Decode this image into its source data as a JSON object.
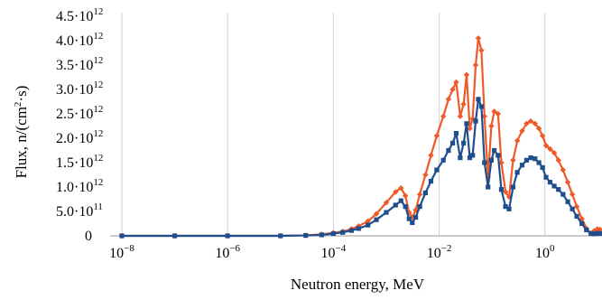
{
  "chart_data": {
    "type": "line",
    "title": "",
    "xlabel": "Neutron energy, MeV",
    "ylabel_html": [
      "Flux, n/(cm",
      "2",
      "·s)"
    ],
    "x_scale": "log",
    "xlim": [
      6e-09,
      12
    ],
    "ylim": [
      0,
      4500000000000.0
    ],
    "grid": {
      "vertical": true,
      "horizontal": false
    },
    "legend": "none",
    "x_ticks": [
      {
        "value": 1e-08,
        "base": "10",
        "exp": "−8"
      },
      {
        "value": 1e-06,
        "base": "10",
        "exp": "−6"
      },
      {
        "value": 0.0001,
        "base": "10",
        "exp": "−4"
      },
      {
        "value": 0.01,
        "base": "10",
        "exp": "−2"
      },
      {
        "value": 1,
        "base": "10",
        "exp": "0"
      }
    ],
    "y_ticks": [
      {
        "value": 0,
        "mant": "0",
        "exp": ""
      },
      {
        "value": 500000000000.0,
        "mant": "5.0·10",
        "exp": "11"
      },
      {
        "value": 1000000000000.0,
        "mant": "1.0·10",
        "exp": "12"
      },
      {
        "value": 1500000000000.0,
        "mant": "1.5·10",
        "exp": "12"
      },
      {
        "value": 2000000000000.0,
        "mant": "2.0·10",
        "exp": "12"
      },
      {
        "value": 2500000000000.0,
        "mant": "2.5·10",
        "exp": "12"
      },
      {
        "value": 3000000000000.0,
        "mant": "3.0·10",
        "exp": "12"
      },
      {
        "value": 3500000000000.0,
        "mant": "3.5·10",
        "exp": "12"
      },
      {
        "value": 4000000000000.0,
        "mant": "4.0·10",
        "exp": "12"
      },
      {
        "value": 4500000000000.0,
        "mant": "4.5·10",
        "exp": "12"
      }
    ],
    "series": [
      {
        "color": "#f05a28",
        "marker": "diamond",
        "points": [
          [
            1e-08,
            0
          ],
          [
            1e-07,
            0
          ],
          [
            1e-06,
            0
          ],
          [
            1e-05,
            0
          ],
          [
            3e-05,
            10000000000.0
          ],
          [
            6e-05,
            30000000000.0
          ],
          [
            0.0001,
            60000000000.0
          ],
          [
            0.00015,
            90000000000.0
          ],
          [
            0.00022,
            140000000000.0
          ],
          [
            0.0003,
            200000000000.0
          ],
          [
            0.00045,
            300000000000.0
          ],
          [
            0.00065,
            450000000000.0
          ],
          [
            0.001,
            680000000000.0
          ],
          [
            0.0015,
            900000000000.0
          ],
          [
            0.0019,
            980000000000.0
          ],
          [
            0.0023,
            820000000000.0
          ],
          [
            0.0027,
            480000000000.0
          ],
          [
            0.0031,
            380000000000.0
          ],
          [
            0.0036,
            530000000000.0
          ],
          [
            0.0043,
            850000000000.0
          ],
          [
            0.0055,
            1250000000000.0
          ],
          [
            0.007,
            1650000000000.0
          ],
          [
            0.009,
            2050000000000.0
          ],
          [
            0.012,
            2450000000000.0
          ],
          [
            0.015,
            2800000000000.0
          ],
          [
            0.018,
            3000000000000.0
          ],
          [
            0.021,
            3150000000000.0
          ],
          [
            0.025,
            2450000000000.0
          ],
          [
            0.029,
            2700000000000.0
          ],
          [
            0.033,
            3300000000000.0
          ],
          [
            0.038,
            2200000000000.0
          ],
          [
            0.043,
            2400000000000.0
          ],
          [
            0.049,
            3500000000000.0
          ],
          [
            0.055,
            4050000000000.0
          ],
          [
            0.063,
            3800000000000.0
          ],
          [
            0.072,
            2450000000000.0
          ],
          [
            0.084,
            1200000000000.0
          ],
          [
            0.097,
            2250000000000.0
          ],
          [
            0.11,
            2550000000000.0
          ],
          [
            0.13,
            2500000000000.0
          ],
          [
            0.15,
            1500000000000.0
          ],
          [
            0.18,
            900000000000.0
          ],
          [
            0.21,
            800000000000.0
          ],
          [
            0.25,
            1550000000000.0
          ],
          [
            0.3,
            1950000000000.0
          ],
          [
            0.37,
            2150000000000.0
          ],
          [
            0.45,
            2300000000000.0
          ],
          [
            0.54,
            2350000000000.0
          ],
          [
            0.65,
            2300000000000.0
          ],
          [
            0.77,
            2200000000000.0
          ],
          [
            0.9,
            2050000000000.0
          ],
          [
            1.05,
            1850000000000.0
          ],
          [
            1.25,
            1780000000000.0
          ],
          [
            1.5,
            1700000000000.0
          ],
          [
            1.8,
            1550000000000.0
          ],
          [
            2.2,
            1350000000000.0
          ],
          [
            2.7,
            1100000000000.0
          ],
          [
            3.3,
            850000000000.0
          ],
          [
            4,
            600000000000.0
          ],
          [
            5,
            350000000000.0
          ],
          [
            6.1,
            150000000000.0
          ],
          [
            7.4,
            50000000000.0
          ],
          [
            8.5,
            100000000000.0
          ],
          [
            9.8,
            140000000000.0
          ],
          [
            11,
            130000000000.0
          ]
        ]
      },
      {
        "color": "#1f4e8c",
        "marker": "square",
        "points": [
          [
            1e-08,
            0
          ],
          [
            1e-07,
            0
          ],
          [
            1e-06,
            0
          ],
          [
            1e-05,
            0
          ],
          [
            3e-05,
            8000000000.0
          ],
          [
            6e-05,
            20000000000.0
          ],
          [
            0.0001,
            45000000000.0
          ],
          [
            0.00015,
            70000000000.0
          ],
          [
            0.00022,
            110000000000.0
          ],
          [
            0.0003,
            150000000000.0
          ],
          [
            0.00045,
            220000000000.0
          ],
          [
            0.00065,
            330000000000.0
          ],
          [
            0.001,
            480000000000.0
          ],
          [
            0.0015,
            630000000000.0
          ],
          [
            0.0019,
            720000000000.0
          ],
          [
            0.0023,
            600000000000.0
          ],
          [
            0.0027,
            350000000000.0
          ],
          [
            0.0031,
            270000000000.0
          ],
          [
            0.0036,
            380000000000.0
          ],
          [
            0.0043,
            600000000000.0
          ],
          [
            0.0055,
            880000000000.0
          ],
          [
            0.007,
            1120000000000.0
          ],
          [
            0.009,
            1350000000000.0
          ],
          [
            0.012,
            1550000000000.0
          ],
          [
            0.015,
            1750000000000.0
          ],
          [
            0.018,
            1900000000000.0
          ],
          [
            0.021,
            2100000000000.0
          ],
          [
            0.025,
            1600000000000.0
          ],
          [
            0.029,
            1900000000000.0
          ],
          [
            0.033,
            2300000000000.0
          ],
          [
            0.038,
            1600000000000.0
          ],
          [
            0.043,
            1650000000000.0
          ],
          [
            0.049,
            2350000000000.0
          ],
          [
            0.055,
            2800000000000.0
          ],
          [
            0.063,
            2650000000000.0
          ],
          [
            0.072,
            1500000000000.0
          ],
          [
            0.084,
            1000000000000.0
          ],
          [
            0.097,
            1550000000000.0
          ],
          [
            0.11,
            1750000000000.0
          ],
          [
            0.13,
            1650000000000.0
          ],
          [
            0.15,
            950000000000.0
          ],
          [
            0.18,
            600000000000.0
          ],
          [
            0.21,
            550000000000.0
          ],
          [
            0.25,
            1000000000000.0
          ],
          [
            0.3,
            1300000000000.0
          ],
          [
            0.37,
            1450000000000.0
          ],
          [
            0.45,
            1550000000000.0
          ],
          [
            0.54,
            1600000000000.0
          ],
          [
            0.65,
            1580000000000.0
          ],
          [
            0.77,
            1500000000000.0
          ],
          [
            0.9,
            1400000000000.0
          ],
          [
            1.05,
            1200000000000.0
          ],
          [
            1.25,
            1100000000000.0
          ],
          [
            1.5,
            1020000000000.0
          ],
          [
            1.8,
            950000000000.0
          ],
          [
            2.2,
            850000000000.0
          ],
          [
            2.7,
            700000000000.0
          ],
          [
            3.3,
            550000000000.0
          ],
          [
            4,
            400000000000.0
          ],
          [
            5,
            250000000000.0
          ],
          [
            6.1,
            120000000000.0
          ],
          [
            7.4,
            50000000000.0
          ],
          [
            8.5,
            40000000000.0
          ],
          [
            9.8,
            50000000000.0
          ],
          [
            11,
            50000000000.0
          ]
        ]
      }
    ]
  }
}
